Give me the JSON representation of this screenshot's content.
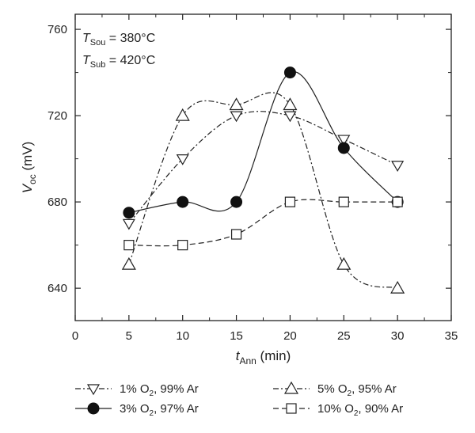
{
  "chart_data": {
    "type": "line",
    "xlabel": {
      "main": "t",
      "sub": "Ann",
      "rest": " (min)"
    },
    "ylabel": {
      "main": "V",
      "sub": "oc",
      "rest": " (mV)"
    },
    "xlim": [
      0,
      35
    ],
    "ylim": [
      625,
      767
    ],
    "xticks": [
      0,
      5,
      10,
      15,
      20,
      25,
      30,
      35
    ],
    "yticks": [
      640,
      680,
      720,
      760
    ],
    "grid": false,
    "legend_position": "bottom",
    "annotations": [
      {
        "main": "T",
        "sub": "Sou",
        "rest": " = 380°C"
      },
      {
        "main": "T",
        "sub": "Sub",
        "rest": " = 420°C"
      }
    ],
    "series": [
      {
        "name": {
          "pre": "1% O",
          "sub": "2",
          "post": ", 99% Ar"
        },
        "marker": "triangle-down",
        "dash": "dashdot",
        "x": [
          5,
          10,
          15,
          20,
          25,
          30
        ],
        "y": [
          670,
          700,
          720,
          720,
          709,
          697
        ]
      },
      {
        "name": {
          "pre": "3% O",
          "sub": "2",
          "post": ", 97% Ar"
        },
        "marker": "circle-filled",
        "dash": "solid",
        "x": [
          5,
          10,
          15,
          20,
          25,
          30
        ],
        "y": [
          675,
          680,
          680,
          740,
          705,
          680
        ]
      },
      {
        "name": {
          "pre": "5% O",
          "sub": "2",
          "post": ", 95% Ar"
        },
        "marker": "triangle-up",
        "dash": "dashdot",
        "x": [
          5,
          10,
          15,
          20,
          25,
          30
        ],
        "y": [
          651,
          720,
          725,
          725,
          651,
          640
        ]
      },
      {
        "name": {
          "pre": "10% O",
          "sub": "2",
          "post": ", 90% Ar"
        },
        "marker": "square",
        "dash": "dashed",
        "x": [
          5,
          10,
          15,
          20,
          25,
          30
        ],
        "y": [
          660,
          660,
          665,
          680,
          680,
          680
        ]
      }
    ]
  }
}
